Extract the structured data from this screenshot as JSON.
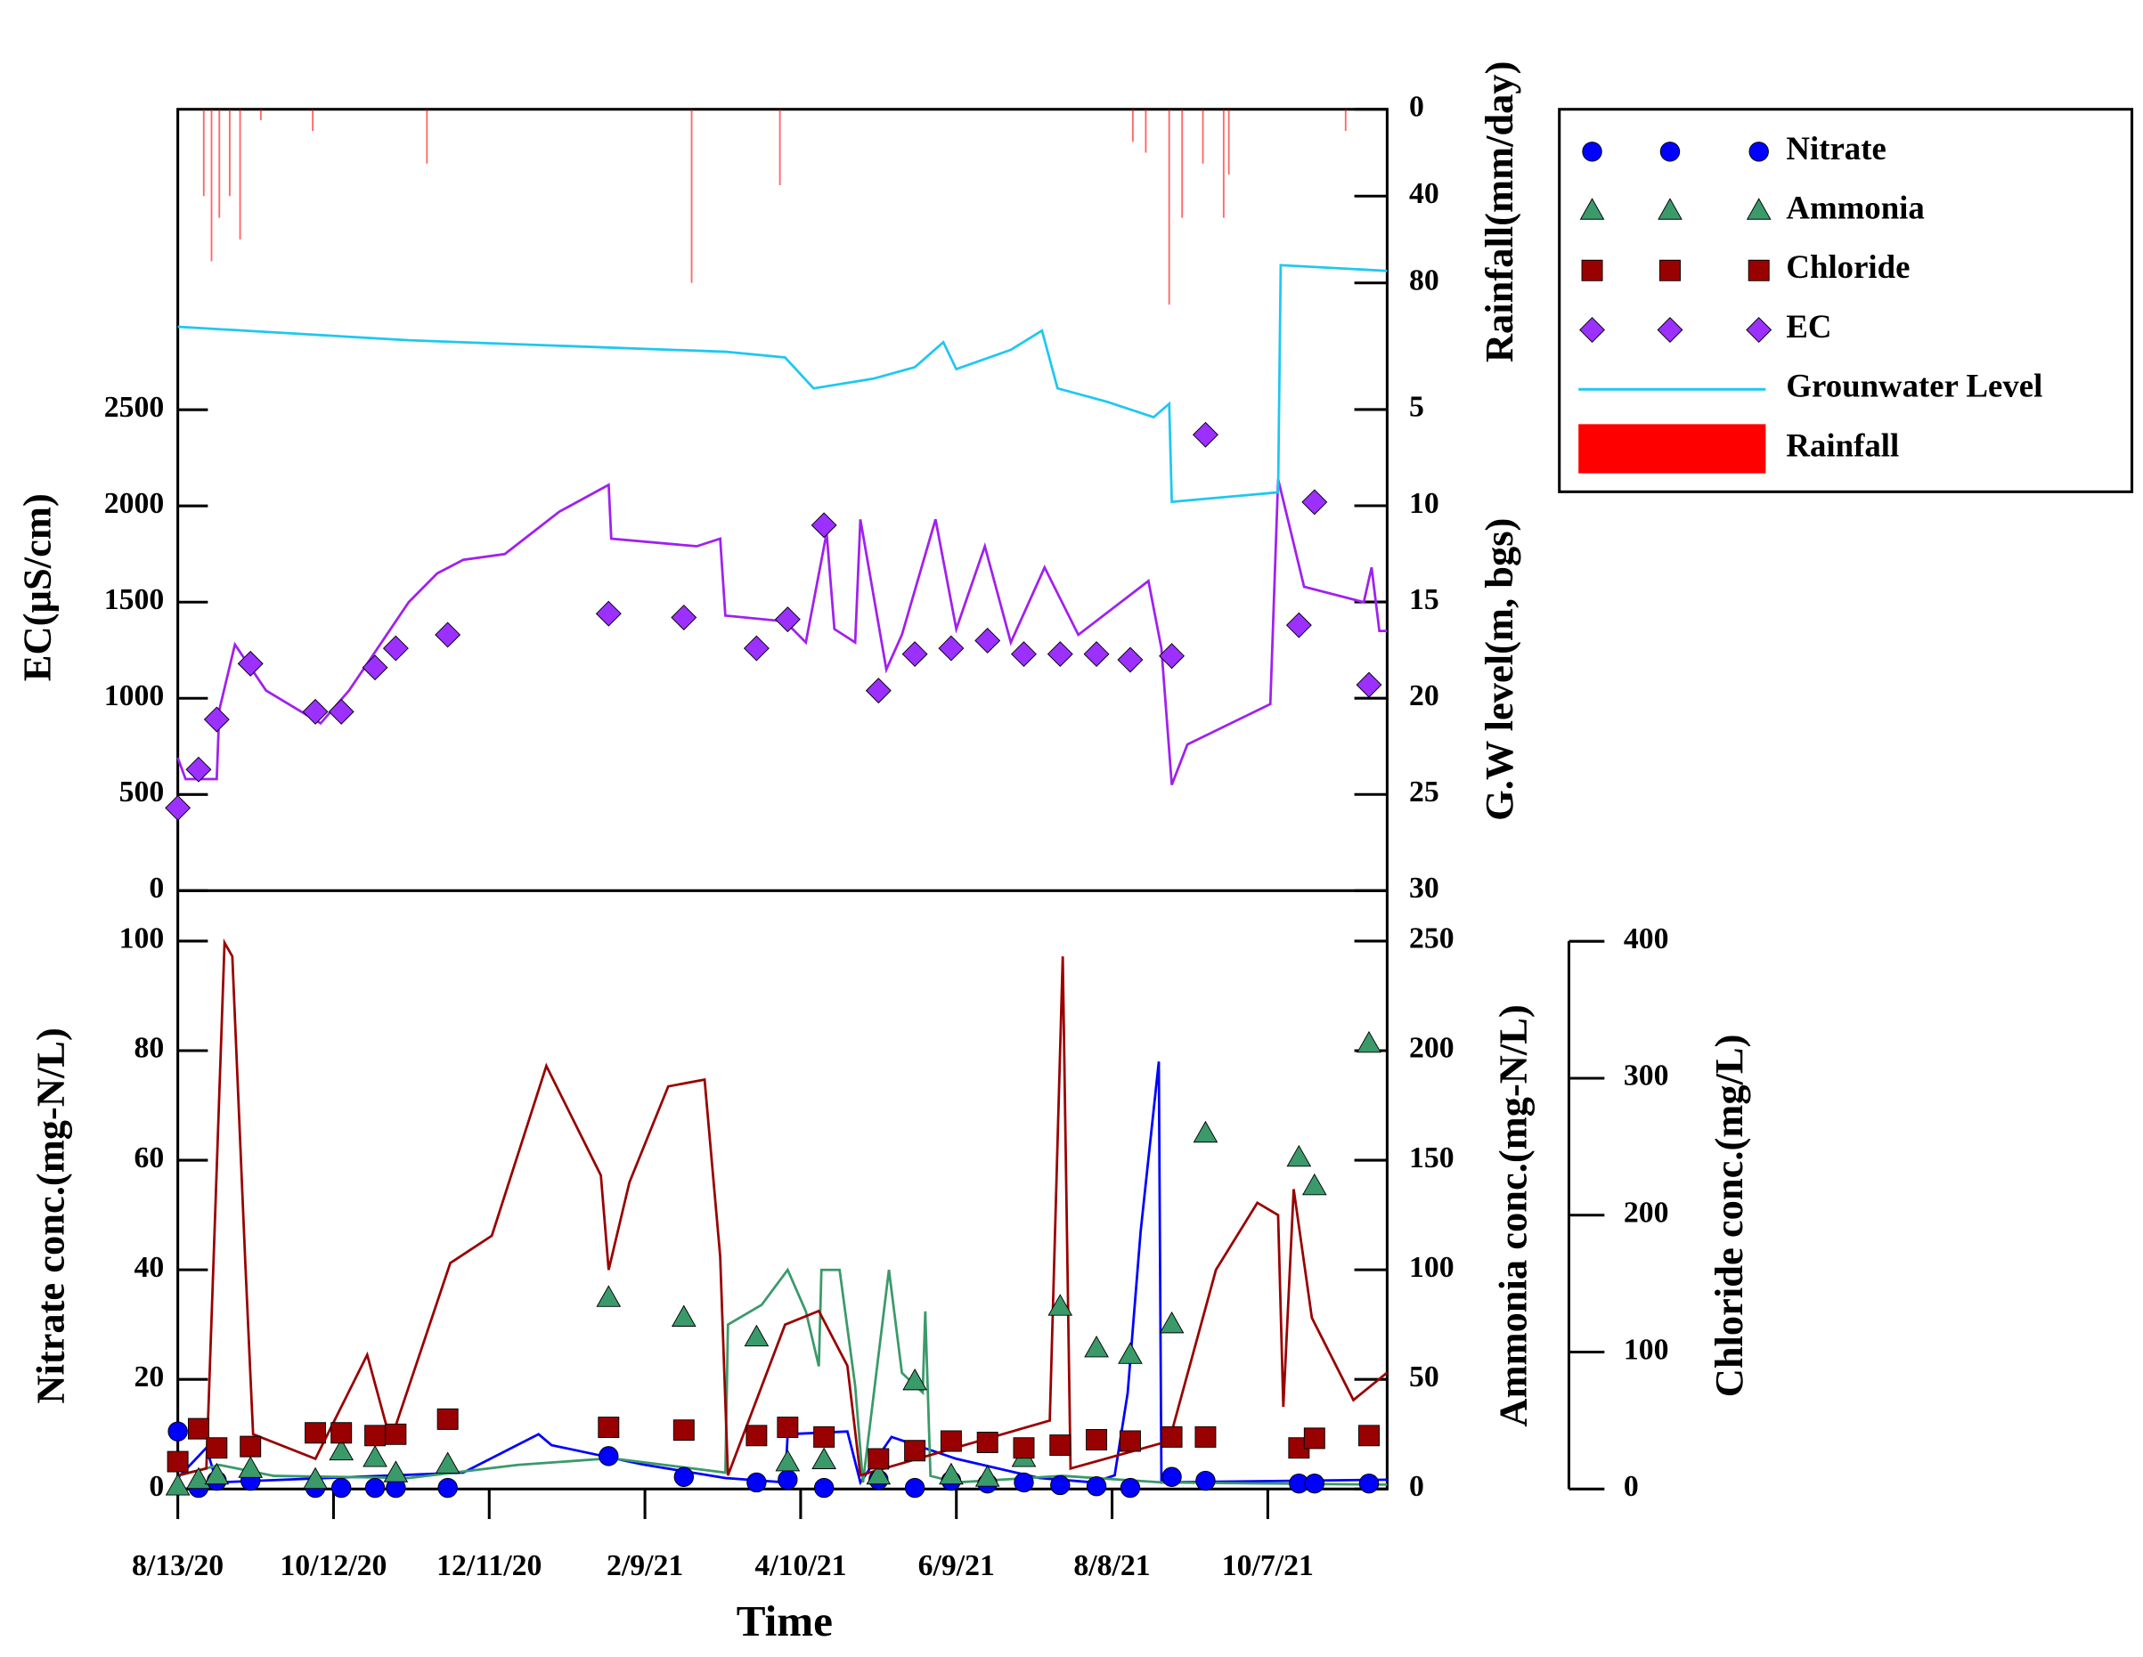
{
  "chart_data": [
    {
      "type": "line",
      "y_label": "EC(µS/cm)",
      "y2_label": "G.W level(m, bgs)",
      "y3_label": "Rainfall(mm/day)",
      "xlim": [
        "8/13/20",
        "11/22/21"
      ],
      "ylim": [
        0,
        4062
      ],
      "yticks": [
        0,
        500,
        1000,
        1500,
        2000,
        2500
      ],
      "y2lim": [
        30,
        -10.6
      ],
      "y2ticks": [
        5,
        10,
        15,
        20,
        25,
        30
      ],
      "y3lim": [
        360,
        0
      ],
      "y3ticks": [
        0,
        40,
        80
      ],
      "x": [
        "8/13/20",
        "8/21/20",
        "8/28/20",
        "9/10/20",
        "10/5/20",
        "10/15/20",
        "10/28/20",
        "11/5/20",
        "11/25/20",
        "1/26/21",
        "2/24/21",
        "3/24/21",
        "4/5/21",
        "4/19/21",
        "5/10/21",
        "5/24/21",
        "6/7/21",
        "6/21/21",
        "7/5/21",
        "7/19/21",
        "8/2/21",
        "8/15/21",
        "8/31/21",
        "9/13/21",
        "10/19/21",
        "10/25/21",
        "11/15/21"
      ],
      "series": [
        {
          "style": "line",
          "axis": "y",
          "color": "#a020f0",
          "x": [
            "8/13/20",
            "8/16/20",
            "8/28/20",
            "8/29/20",
            "9/4/20",
            "9/16/20",
            "10/7/20",
            "10/18/20",
            "11/10/20",
            "11/21/20",
            "12/1/20",
            "12/17/20",
            "1/7/21",
            "1/26/21",
            "1/27/21",
            "3/1/21",
            "3/10/21",
            "3/12/21",
            "4/4/21",
            "4/12/21",
            "4/20/21",
            "4/23/21",
            "5/1/21",
            "5/3/21",
            "5/13/21",
            "5/19/21",
            "6/1/21",
            "6/9/21",
            "6/20/21",
            "6/30/21",
            "7/13/21",
            "7/26/21",
            "8/22/21",
            "8/27/21",
            "8/31/21",
            "9/6/21",
            "10/8/21",
            "10/11/21",
            "10/21/21",
            "11/13/21",
            "11/16/21",
            "11/19/21",
            "11/22/21"
          ],
          "values": [
            690,
            580,
            580,
            940,
            1280,
            1040,
            870,
            1040,
            1500,
            1650,
            1720,
            1750,
            1970,
            2110,
            1830,
            1790,
            1830,
            1430,
            1400,
            1290,
            1860,
            1360,
            1290,
            1930,
            1150,
            1330,
            1930,
            1360,
            1790,
            1290,
            1680,
            1330,
            1610,
            1260,
            550,
            760,
            970,
            2140,
            1580,
            1500,
            1680,
            1350,
            1350
          ]
        },
        {
          "name": "EC",
          "style": "marker",
          "marker": "diamond",
          "axis": "y",
          "color": "#9b30ff",
          "values": [
            430,
            630,
            890,
            1180,
            930,
            930,
            1160,
            1260,
            1330,
            1440,
            1420,
            1260,
            1410,
            1900,
            1040,
            1230,
            1260,
            1300,
            1230,
            1230,
            1230,
            1200,
            1220,
            2370,
            1380,
            2020,
            1070
          ]
        },
        {
          "name": "Grounwater Level",
          "style": "line",
          "axis": "y2",
          "color": "#1ec8f0",
          "x": [
            "8/13/20",
            "11/10/20",
            "3/12/21",
            "4/4/21",
            "4/15/21",
            "5/8/21",
            "5/24/21",
            "6/4/21",
            "6/9/21",
            "6/30/21",
            "7/12/21",
            "7/18/21",
            "8/6/21",
            "8/24/21",
            "8/30/21",
            "8/31/21",
            "10/11/21",
            "10/12/21",
            "11/22/21"
          ],
          "values": [
            0.7,
            1.4,
            2.0,
            2.3,
            3.9,
            3.4,
            2.8,
            1.5,
            2.9,
            1.9,
            0.9,
            3.9,
            4.6,
            5.4,
            4.7,
            9.8,
            9.3,
            -2.5,
            -2.2
          ]
        },
        {
          "name": "Rainfall",
          "style": "bar",
          "axis": "y3",
          "color": "#ff0000",
          "x": [
            "8/23/20",
            "8/26/20",
            "8/29/20",
            "9/2/20",
            "9/6/20",
            "9/14/20",
            "10/4/20",
            "11/17/20",
            "2/27/21",
            "4/2/21",
            "8/16/21",
            "8/21/21",
            "8/30/21",
            "9/4/21",
            "9/12/21",
            "9/20/21",
            "9/22/21",
            "11/6/21"
          ],
          "values": [
            40,
            70,
            50,
            40,
            60,
            5,
            10,
            25,
            80,
            35,
            15,
            20,
            90,
            50,
            25,
            50,
            30,
            10
          ]
        }
      ]
    },
    {
      "type": "line",
      "x_label": "Time",
      "y_label": "Nitrate conc.(mg-N/L)",
      "y2_label": "Ammonia conc.(mg-N/L)",
      "y3_label": "Chloride conc.(mg/L)",
      "xlim": [
        "8/13/20",
        "11/22/21"
      ],
      "xticks": [
        "8/13/20",
        "10/12/20",
        "12/11/20",
        "2/9/21",
        "4/10/21",
        "6/9/21",
        "8/8/21",
        "10/7/21"
      ],
      "ylim": [
        0,
        109.2
      ],
      "yticks": [
        0,
        20,
        40,
        60,
        80,
        100
      ],
      "y2lim": [
        0,
        273
      ],
      "y2ticks": [
        0,
        50,
        100,
        150,
        200,
        250
      ],
      "y3lim": [
        0,
        437
      ],
      "y3ticks": [
        0,
        100,
        200,
        300,
        400
      ],
      "x": [
        "8/13/20",
        "8/21/20",
        "8/28/20",
        "9/10/20",
        "10/5/20",
        "10/15/20",
        "10/28/20",
        "11/5/20",
        "11/25/20",
        "1/26/21",
        "2/24/21",
        "3/24/21",
        "4/5/21",
        "4/19/21",
        "5/10/21",
        "5/24/21",
        "6/7/21",
        "6/21/21",
        "7/5/21",
        "7/19/21",
        "8/2/21",
        "8/15/21",
        "8/31/21",
        "9/13/21",
        "10/19/21",
        "10/25/21",
        "11/15/21"
      ],
      "series": [
        {
          "style": "line",
          "axis": "y",
          "color": "#0000ff",
          "x": [
            "8/13/20",
            "8/24/20",
            "8/28/20",
            "12/1/20",
            "12/30/20",
            "1/4/21",
            "2/8/21",
            "3/12/21",
            "4/4/21",
            "4/5/21",
            "4/28/21",
            "5/3/21",
            "5/15/21",
            "6/9/21",
            "7/11/21",
            "8/1/21",
            "8/9/21",
            "8/14/21",
            "8/19/21",
            "8/26/21",
            "8/27/21",
            "11/22/21"
          ],
          "values": [
            2,
            7.5,
            1.2,
            3,
            10,
            8,
            4.5,
            2,
            1.2,
            10,
            10.5,
            1.2,
            9.5,
            5.5,
            2,
            1.2,
            2.5,
            17.5,
            47,
            78,
            1.2,
            1.7
          ]
        },
        {
          "style": "line",
          "axis": "y2",
          "color": "#3a9a6a",
          "x": [
            "8/13/20",
            "8/29/20",
            "9/19/20",
            "11/10/20",
            "12/22/20",
            "1/27/21",
            "3/12/21",
            "3/13/21",
            "3/26/21",
            "4/5/21",
            "4/12/21",
            "4/17/21",
            "4/18/21",
            "4/25/21",
            "5/1/21",
            "5/4/21",
            "5/14/21",
            "5/19/21",
            "5/27/21",
            "5/28/21",
            "5/30/21",
            "6/9/21",
            "7/20/21",
            "8/27/21",
            "11/22/21"
          ],
          "values": [
            6,
            11,
            6,
            5,
            11,
            14,
            7.5,
            75,
            84,
            100,
            81,
            56,
            100,
            100,
            47,
            3,
            100,
            53,
            44,
            81,
            6,
            3,
            6,
            3,
            2
          ]
        },
        {
          "style": "line",
          "axis": "y3",
          "color": "#990000",
          "x": [
            "8/13/20",
            "8/24/20",
            "8/31/20",
            "9/3/20",
            "9/8/20",
            "9/11/20",
            "10/5/20",
            "10/25/20",
            "11/3/20",
            "11/26/20",
            "12/12/20",
            "1/2/21",
            "1/23/21",
            "1/26/21",
            "2/3/21",
            "2/18/21",
            "3/4/21",
            "3/10/21",
            "3/13/21",
            "4/4/21",
            "4/17/21",
            "4/28/21",
            "5/3/21",
            "7/15/21",
            "7/20/21",
            "7/23/21",
            "8/30/21",
            "9/17/21",
            "10/3/21",
            "10/11/21",
            "10/13/21",
            "10/17/21",
            "10/24/21",
            "11/9/21",
            "11/22/21"
          ],
          "values": [
            10,
            15,
            399,
            389,
            165,
            40,
            22,
            98,
            35,
            165,
            185,
            309,
            229,
            160,
            224,
            294,
            299,
            170,
            10,
            120,
            130,
            90,
            10,
            50,
            389,
            15,
            35,
            160,
            209,
            200,
            60,
            219,
            125,
            65,
            85
          ]
        },
        {
          "name": "Nitrate",
          "style": "marker",
          "marker": "circle",
          "axis": "y",
          "color": "#0000ff",
          "values": [
            10.5,
            0.2,
            1.5,
            1.5,
            0.2,
            0.2,
            0.2,
            0.2,
            0.2,
            6,
            2.2,
            1.2,
            1.7,
            0.2,
            1.7,
            0.2,
            1.5,
            1,
            1.2,
            0.7,
            0.5,
            0.2,
            2.2,
            1.5,
            1,
            1,
            1
          ]
        },
        {
          "name": "Ammonia",
          "style": "marker",
          "marker": "triangle",
          "axis": "y2",
          "color": "#3a9a6a",
          "values": [
            1,
            4,
            6,
            9,
            4,
            17,
            14,
            7,
            11,
            87,
            78,
            69,
            12,
            13,
            6,
            49,
            6,
            5,
            14,
            83,
            64,
            61,
            75,
            162,
            151,
            138,
            203
          ]
        },
        {
          "name": "Chloride",
          "style": "marker",
          "marker": "square",
          "axis": "y3",
          "color": "#990000",
          "values": [
            20,
            44,
            30,
            31,
            41,
            41,
            39,
            40,
            51,
            45,
            43,
            39,
            45,
            38,
            22,
            28,
            35,
            34,
            30,
            32,
            36,
            35,
            38,
            38,
            30,
            37,
            39
          ]
        }
      ]
    }
  ]
}
